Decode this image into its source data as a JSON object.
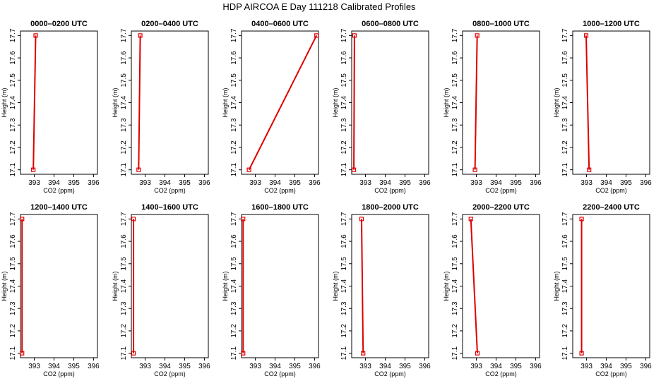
{
  "figure_title": "HDP AIRCOA E  Day 111218  Calibrated Profiles",
  "chart_data": [
    {
      "type": "line",
      "title": "0000–0200 UTC",
      "xlabel": "CO2 (ppm)",
      "ylabel": "Height (m)",
      "xlim": [
        392.3,
        396.2
      ],
      "ylim": [
        17.08,
        17.72
      ],
      "xticks": [
        393,
        394,
        395,
        396
      ],
      "yticks": [
        17.1,
        17.2,
        17.3,
        17.4,
        17.5,
        17.6,
        17.7
      ],
      "series": [
        {
          "x": [
            392.95,
            393.07
          ],
          "y": [
            17.1,
            17.7
          ]
        }
      ]
    },
    {
      "type": "line",
      "title": "0200–0400 UTC",
      "xlabel": "CO2 (ppm)",
      "ylabel": "Height (m)",
      "xlim": [
        392.3,
        396.2
      ],
      "ylim": [
        17.08,
        17.72
      ],
      "xticks": [
        393,
        394,
        395,
        396
      ],
      "yticks": [
        17.1,
        17.2,
        17.3,
        17.4,
        17.5,
        17.6,
        17.7
      ],
      "series": [
        {
          "x": [
            392.67,
            392.75
          ],
          "y": [
            17.1,
            17.7
          ]
        }
      ]
    },
    {
      "type": "line",
      "title": "0400–0600 UTC",
      "xlabel": "CO2 (ppm)",
      "ylabel": "Height (m)",
      "xlim": [
        392.3,
        396.2
      ],
      "ylim": [
        17.08,
        17.72
      ],
      "xticks": [
        393,
        394,
        395,
        396
      ],
      "yticks": [
        17.1,
        17.2,
        17.3,
        17.4,
        17.5,
        17.6,
        17.7
      ],
      "series": [
        {
          "x": [
            392.68,
            396.1
          ],
          "y": [
            17.1,
            17.7
          ]
        }
      ]
    },
    {
      "type": "line",
      "title": "0600–0800 UTC",
      "xlabel": "CO2 (ppm)",
      "ylabel": "Height (m)",
      "xlim": [
        392.3,
        396.2
      ],
      "ylim": [
        17.08,
        17.72
      ],
      "xticks": [
        393,
        394,
        395,
        396
      ],
      "yticks": [
        17.1,
        17.2,
        17.3,
        17.4,
        17.5,
        17.6,
        17.7
      ],
      "series": [
        {
          "x": [
            392.41,
            392.44
          ],
          "y": [
            17.1,
            17.7
          ]
        }
      ]
    },
    {
      "type": "line",
      "title": "0800–1000 UTC",
      "xlabel": "CO2 (ppm)",
      "ylabel": "Height (m)",
      "xlim": [
        392.3,
        396.2
      ],
      "ylim": [
        17.08,
        17.72
      ],
      "xticks": [
        393,
        394,
        395,
        396
      ],
      "yticks": [
        17.1,
        17.2,
        17.3,
        17.4,
        17.5,
        17.6,
        17.7
      ],
      "series": [
        {
          "x": [
            392.93,
            393.04
          ],
          "y": [
            17.1,
            17.7
          ]
        }
      ]
    },
    {
      "type": "line",
      "title": "1000–1200 UTC",
      "xlabel": "CO2 (ppm)",
      "ylabel": "Height (m)",
      "xlim": [
        392.3,
        396.2
      ],
      "ylim": [
        17.08,
        17.72
      ],
      "xticks": [
        393,
        394,
        395,
        396
      ],
      "yticks": [
        17.1,
        17.2,
        17.3,
        17.4,
        17.5,
        17.6,
        17.7
      ],
      "series": [
        {
          "x": [
            393.13,
            392.98
          ],
          "y": [
            17.1,
            17.7
          ]
        }
      ]
    },
    {
      "type": "line",
      "title": "1200–1400 UTC",
      "xlabel": "CO2 (ppm)",
      "ylabel": "Height (m)",
      "xlim": [
        392.3,
        396.2
      ],
      "ylim": [
        17.08,
        17.72
      ],
      "xticks": [
        393,
        394,
        395,
        396
      ],
      "yticks": [
        17.1,
        17.2,
        17.3,
        17.4,
        17.5,
        17.6,
        17.7
      ],
      "series": [
        {
          "x": [
            392.38,
            392.38
          ],
          "y": [
            17.1,
            17.7
          ]
        }
      ]
    },
    {
      "type": "line",
      "title": "1400–1600 UTC",
      "xlabel": "CO2 (ppm)",
      "ylabel": "Height (m)",
      "xlim": [
        392.3,
        396.2
      ],
      "ylim": [
        17.08,
        17.72
      ],
      "xticks": [
        393,
        394,
        395,
        396
      ],
      "yticks": [
        17.1,
        17.2,
        17.3,
        17.4,
        17.5,
        17.6,
        17.7
      ],
      "series": [
        {
          "x": [
            392.41,
            392.41
          ],
          "y": [
            17.1,
            17.7
          ]
        }
      ]
    },
    {
      "type": "line",
      "title": "1600–1800 UTC",
      "xlabel": "CO2 (ppm)",
      "ylabel": "Height (m)",
      "xlim": [
        392.3,
        396.2
      ],
      "ylim": [
        17.08,
        17.72
      ],
      "xticks": [
        393,
        394,
        395,
        396
      ],
      "yticks": [
        17.1,
        17.2,
        17.3,
        17.4,
        17.5,
        17.6,
        17.7
      ],
      "series": [
        {
          "x": [
            392.38,
            392.38
          ],
          "y": [
            17.1,
            17.7
          ]
        }
      ]
    },
    {
      "type": "line",
      "title": "1800–2000 UTC",
      "xlabel": "CO2 (ppm)",
      "ylabel": "Height (m)",
      "xlim": [
        392.3,
        396.2
      ],
      "ylim": [
        17.08,
        17.72
      ],
      "xticks": [
        393,
        394,
        395,
        396
      ],
      "yticks": [
        17.1,
        17.2,
        17.3,
        17.4,
        17.5,
        17.6,
        17.7
      ],
      "series": [
        {
          "x": [
            392.88,
            392.8
          ],
          "y": [
            17.1,
            17.7
          ]
        }
      ]
    },
    {
      "type": "line",
      "title": "2000–2200 UTC",
      "xlabel": "CO2 (ppm)",
      "ylabel": "Height (m)",
      "xlim": [
        392.3,
        396.2
      ],
      "ylim": [
        17.08,
        17.72
      ],
      "xticks": [
        393,
        394,
        395,
        396
      ],
      "yticks": [
        17.1,
        17.2,
        17.3,
        17.4,
        17.5,
        17.6,
        17.7
      ],
      "series": [
        {
          "x": [
            393.05,
            392.72
          ],
          "y": [
            17.1,
            17.7
          ]
        }
      ]
    },
    {
      "type": "line",
      "title": "2200–2400 UTC",
      "xlabel": "CO2 (ppm)",
      "ylabel": "Height (m)",
      "xlim": [
        392.3,
        396.2
      ],
      "ylim": [
        17.08,
        17.72
      ],
      "xticks": [
        393,
        394,
        395,
        396
      ],
      "yticks": [
        17.1,
        17.2,
        17.3,
        17.4,
        17.5,
        17.6,
        17.7
      ],
      "series": [
        {
          "x": [
            392.75,
            392.75
          ],
          "y": [
            17.1,
            17.7
          ]
        }
      ]
    }
  ],
  "colors": {
    "line": "#dd0000",
    "marker": "#dd0000",
    "axes": "#000000"
  }
}
